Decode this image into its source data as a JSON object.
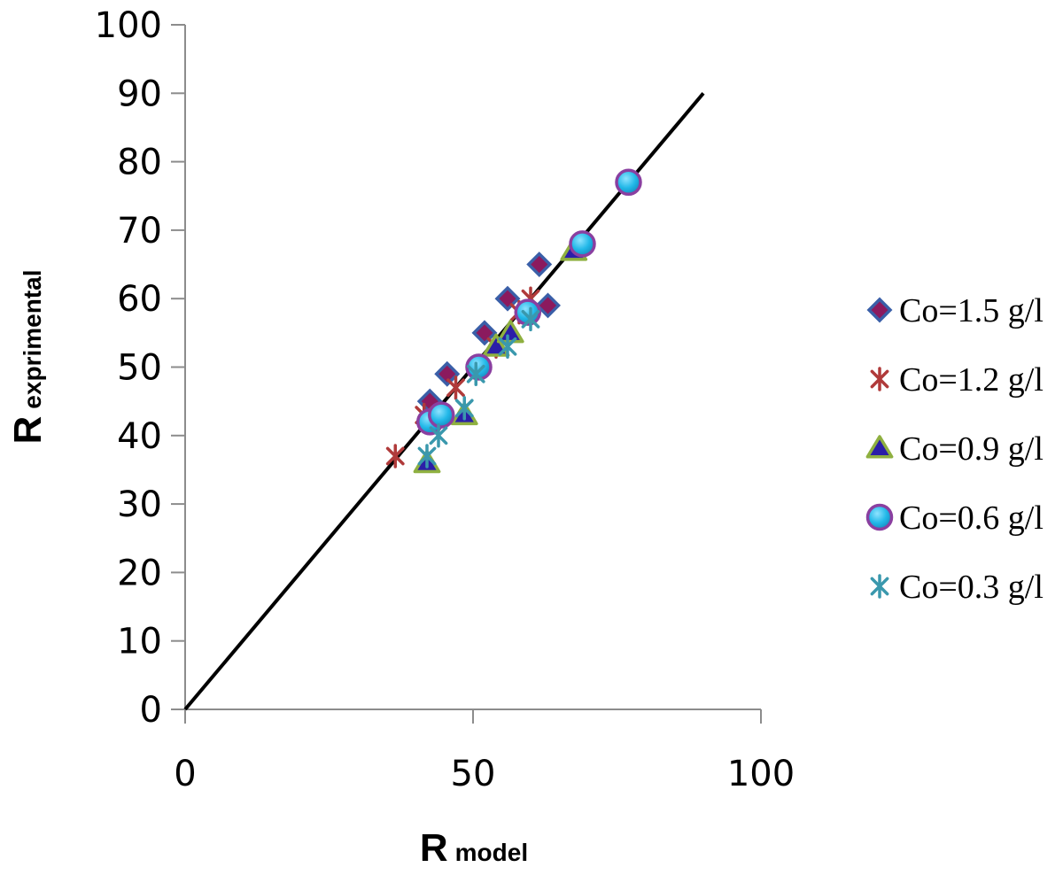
{
  "chart_data": {
    "type": "scatter",
    "title": "",
    "xlabel": {
      "main": "R",
      "sub": "model"
    },
    "ylabel": {
      "main": "R",
      "sub": "exprimental"
    },
    "xlim": [
      0,
      100
    ],
    "ylim": [
      0,
      100
    ],
    "x_ticks": [
      0,
      50,
      100
    ],
    "y_ticks": [
      0,
      10,
      20,
      30,
      40,
      50,
      60,
      70,
      80,
      90,
      100
    ],
    "grid": false,
    "legend_position": "right",
    "reference_line": {
      "x": [
        0,
        90
      ],
      "y": [
        0,
        90
      ],
      "color": "#000000"
    },
    "series": [
      {
        "name": "Co=1.5 g/l",
        "marker": "diamond",
        "fill": "#8b1a5e",
        "stroke": "#3a5fa8",
        "x": [
          42.5,
          45.5,
          52,
          56,
          61.5,
          63
        ],
        "y": [
          45,
          49,
          55,
          60,
          65,
          59
        ]
      },
      {
        "name": "Co=1.2 g/l",
        "marker": "star",
        "fill": "#b03a3a",
        "stroke": "#b03a3a",
        "x": [
          36.5,
          41.5,
          47,
          54,
          58,
          60
        ],
        "y": [
          37,
          43,
          47,
          53,
          58,
          60
        ]
      },
      {
        "name": "Co=0.9 g/l",
        "marker": "triangle",
        "fill": "#2b1ea8",
        "stroke": "#8fb040",
        "x": [
          42,
          48.5,
          54,
          56.5,
          67.5
        ],
        "y": [
          36,
          43,
          53,
          55,
          67
        ]
      },
      {
        "name": "Co=0.6 g/l",
        "marker": "circle",
        "fill": "#22b8e8",
        "stroke": "#8a3fa0",
        "x": [
          42.5,
          44.5,
          51,
          59.5,
          69,
          77
        ],
        "y": [
          42,
          43,
          50,
          58,
          68,
          77
        ]
      },
      {
        "name": "Co=0.3 g/l",
        "marker": "star",
        "fill": "#3a98ad",
        "stroke": "#3a98ad",
        "x": [
          42,
          44,
          48.5,
          50.5,
          56,
          60
        ],
        "y": [
          37,
          40,
          44,
          49,
          53,
          57
        ]
      }
    ]
  }
}
